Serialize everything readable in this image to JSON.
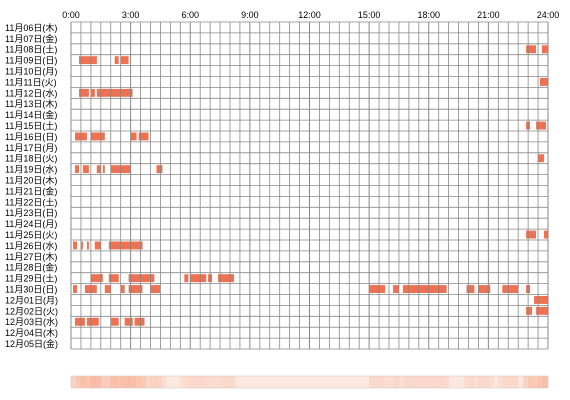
{
  "chart_data": {
    "type": "heatmap",
    "subtype": "activity-timeline",
    "x_ticks": [
      "0:00",
      "3:00",
      "6:00",
      "9:00",
      "12:00",
      "15:00",
      "18:00",
      "21:00",
      "24:00"
    ],
    "x_range_hours": [
      0,
      24
    ],
    "grid": true,
    "colors": {
      "bar": "#f07050",
      "bar_light": "#f8a888",
      "grid": "#888888",
      "background": "#ffffff",
      "summary_base": "#fde8e0"
    },
    "rows": [
      {
        "label": "11月06日(木)",
        "intervals": []
      },
      {
        "label": "11月07日(金)",
        "intervals": []
      },
      {
        "label": "11月08日(土)",
        "intervals": [
          [
            22.9,
            23.4
          ],
          [
            23.7,
            24.0
          ]
        ]
      },
      {
        "label": "11月09日(日)",
        "intervals": [
          [
            0.4,
            1.3
          ],
          [
            2.2,
            2.4
          ],
          [
            2.5,
            2.9
          ]
        ]
      },
      {
        "label": "11月10日(月)",
        "intervals": []
      },
      {
        "label": "11月11日(火)",
        "intervals": [
          [
            23.6,
            24.0
          ]
        ]
      },
      {
        "label": "11月12日(水)",
        "intervals": [
          [
            0.4,
            0.9
          ],
          [
            1.0,
            1.2
          ],
          [
            1.3,
            3.1
          ]
        ]
      },
      {
        "label": "11月13日(木)",
        "intervals": []
      },
      {
        "label": "11月14日(金)",
        "intervals": []
      },
      {
        "label": "11月15日(土)",
        "intervals": [
          [
            22.9,
            23.1
          ],
          [
            23.4,
            23.9
          ]
        ]
      },
      {
        "label": "11月16日(日)",
        "intervals": [
          [
            0.2,
            0.8
          ],
          [
            1.0,
            1.7
          ],
          [
            3.0,
            3.3
          ],
          [
            3.4,
            3.9
          ]
        ]
      },
      {
        "label": "11月17日(月)",
        "intervals": []
      },
      {
        "label": "11月18日(火)",
        "intervals": [
          [
            23.5,
            23.8
          ]
        ]
      },
      {
        "label": "11月19日(水)",
        "intervals": [
          [
            0.2,
            0.4
          ],
          [
            0.6,
            0.9
          ],
          [
            1.3,
            1.5
          ],
          [
            1.6,
            1.7
          ],
          [
            2.0,
            3.0
          ],
          [
            4.3,
            4.6
          ]
        ]
      },
      {
        "label": "11月20日(木)",
        "intervals": []
      },
      {
        "label": "11月21日(金)",
        "intervals": []
      },
      {
        "label": "11月22日(土)",
        "intervals": []
      },
      {
        "label": "11月23日(日)",
        "intervals": []
      },
      {
        "label": "11月24日(月)",
        "intervals": []
      },
      {
        "label": "11月25日(火)",
        "intervals": [
          [
            22.9,
            23.4
          ],
          [
            23.8,
            24.0
          ]
        ]
      },
      {
        "label": "11月26日(水)",
        "intervals": [
          [
            0.1,
            0.3
          ],
          [
            0.5,
            0.6
          ],
          [
            0.8,
            0.9
          ],
          [
            1.2,
            1.5
          ],
          [
            1.9,
            3.6
          ]
        ]
      },
      {
        "label": "11月27日(木)",
        "intervals": []
      },
      {
        "label": "11月28日(金)",
        "intervals": []
      },
      {
        "label": "11月29日(土)",
        "intervals": [
          [
            1.0,
            1.6
          ],
          [
            1.9,
            2.4
          ],
          [
            2.9,
            4.2
          ],
          [
            5.7,
            5.9
          ],
          [
            6.0,
            6.8
          ],
          [
            6.9,
            7.1
          ],
          [
            7.4,
            8.2
          ]
        ]
      },
      {
        "label": "11月30日(日)",
        "intervals": [
          [
            0.1,
            0.3
          ],
          [
            0.7,
            1.3
          ],
          [
            1.7,
            2.0
          ],
          [
            2.5,
            2.7
          ],
          [
            2.9,
            3.6
          ],
          [
            4.0,
            4.5
          ],
          [
            15.0,
            15.8
          ],
          [
            16.2,
            16.5
          ],
          [
            16.7,
            18.9
          ],
          [
            19.9,
            20.3
          ],
          [
            20.5,
            21.1
          ],
          [
            21.7,
            22.5
          ],
          [
            22.9,
            23.1
          ]
        ]
      },
      {
        "label": "12月01日(月)",
        "intervals": [
          [
            23.3,
            23.8
          ],
          [
            23.8,
            24.0
          ]
        ]
      },
      {
        "label": "12月02日(火)",
        "intervals": [
          [
            22.9,
            23.2
          ],
          [
            23.4,
            24.0
          ]
        ]
      },
      {
        "label": "12月03日(水)",
        "intervals": [
          [
            0.2,
            0.7
          ],
          [
            0.8,
            1.4
          ],
          [
            2.0,
            2.4
          ],
          [
            2.7,
            3.1
          ],
          [
            3.2,
            3.7
          ]
        ]
      },
      {
        "label": "12月04日(木)",
        "intervals": []
      },
      {
        "label": "12月05日(金)",
        "intervals": []
      }
    ]
  }
}
